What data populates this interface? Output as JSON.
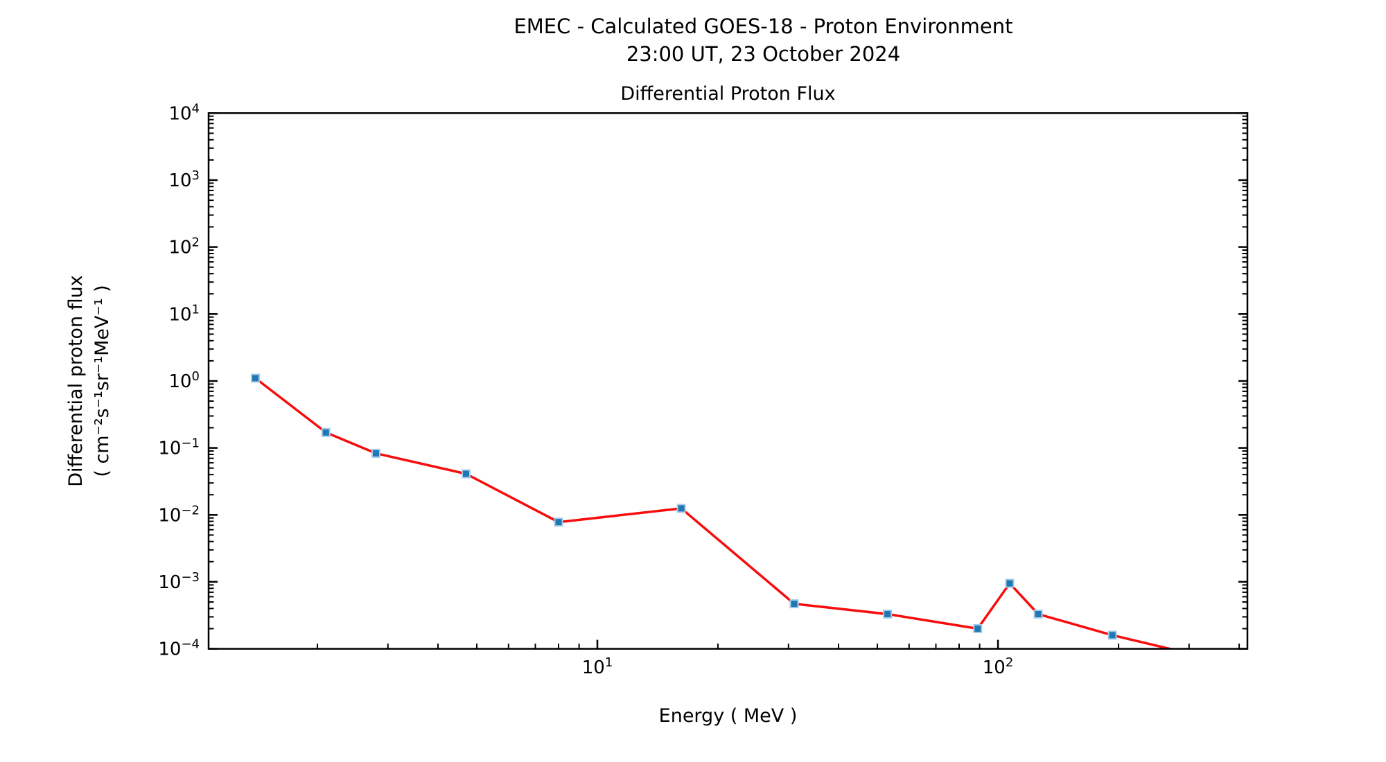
{
  "figure": {
    "suptitle_line1": "EMEC - Calculated GOES-18 - Proton Environment",
    "suptitle_line2": "23:00 UT, 23 October 2024",
    "axes_title": "Differential Proton Flux",
    "xlabel": "Energy ( MeV )",
    "ylabel_line1": "Differential proton flux",
    "ylabel_line2": "( cm⁻²s⁻¹sr⁻¹MeV⁻¹ )"
  },
  "chart_data": {
    "type": "line",
    "title": "Differential Proton Flux",
    "xlabel": "Energy ( MeV )",
    "ylabel": "Differential proton flux ( cm-2 s-1 sr-1 MeV-1 )",
    "x_scale": "log",
    "y_scale": "log",
    "xlim": [
      1.07,
      419.5
    ],
    "ylim": [
      0.0001,
      10000
    ],
    "x_tick_exponents": [
      1,
      2
    ],
    "y_tick_exponents": [
      4,
      3,
      2,
      1,
      0,
      -1,
      -2,
      -3,
      -4
    ],
    "grid": false,
    "legend": "none",
    "series": [
      {
        "name": "differential-proton-flux",
        "line_color": "#f80d0d",
        "marker": "square",
        "marker_color": "#1f77b4",
        "marker_edge_color": "#a6cbe8",
        "x": [
          1.4,
          2.1,
          2.8,
          4.7,
          8.0,
          16.2,
          31,
          53,
          89,
          107,
          126,
          193,
          345
        ],
        "y": [
          1.1,
          0.17,
          0.083,
          0.041,
          0.0078,
          0.0125,
          0.00047,
          0.00033,
          0.0002,
          0.00095,
          0.00033,
          0.00016,
          7e-05
        ],
        "note_last_point": "below ylim, line clipped at 1e-4 near x=267"
      }
    ]
  }
}
